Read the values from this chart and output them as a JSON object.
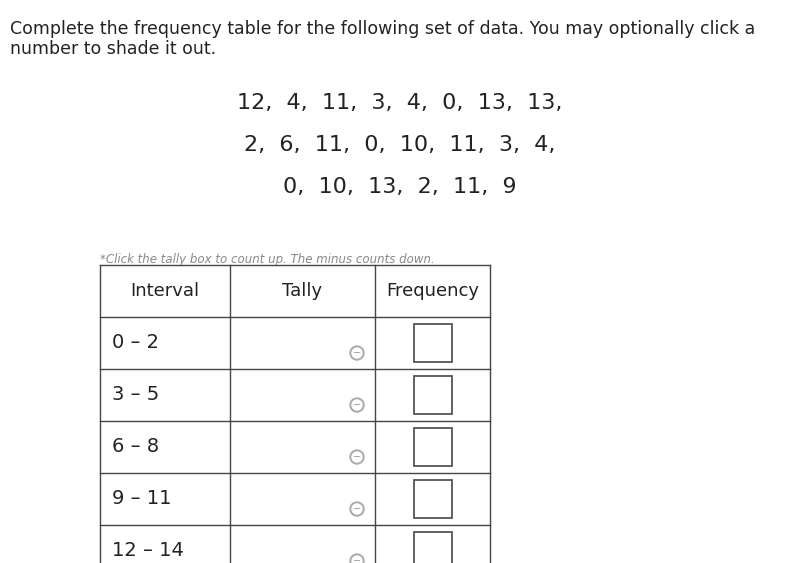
{
  "title_line1": "Complete the frequency table for the following set of data. You may optionally click a",
  "title_line2": "number to shade it out.",
  "data_lines": [
    "12,  4,  11,  3,  4,  0,  13,  13,",
    "2,  6,  11,  0,  10,  11,  3,  4,",
    "0,  10,  13,  2,  11,  9"
  ],
  "tally_note": "*Click the tally box to count up. The minus counts down.",
  "col_headers": [
    "Interval",
    "Tally",
    "Frequency"
  ],
  "intervals": [
    "0 – 2",
    "3 – 5",
    "6 – 8",
    "9 – 11",
    "12 – 14"
  ],
  "bg_color": "#ffffff",
  "text_color": "#222222",
  "table_border_color": "#444444",
  "note_color": "#888888",
  "title_fontsize": 12.5,
  "data_fontsize": 16,
  "table_header_fontsize": 13,
  "table_data_fontsize": 14,
  "note_fontsize": 8.5,
  "circle_color": "#aaaaaa",
  "circle_inner_color": "#ffffff",
  "square_edge_color": "#555555"
}
